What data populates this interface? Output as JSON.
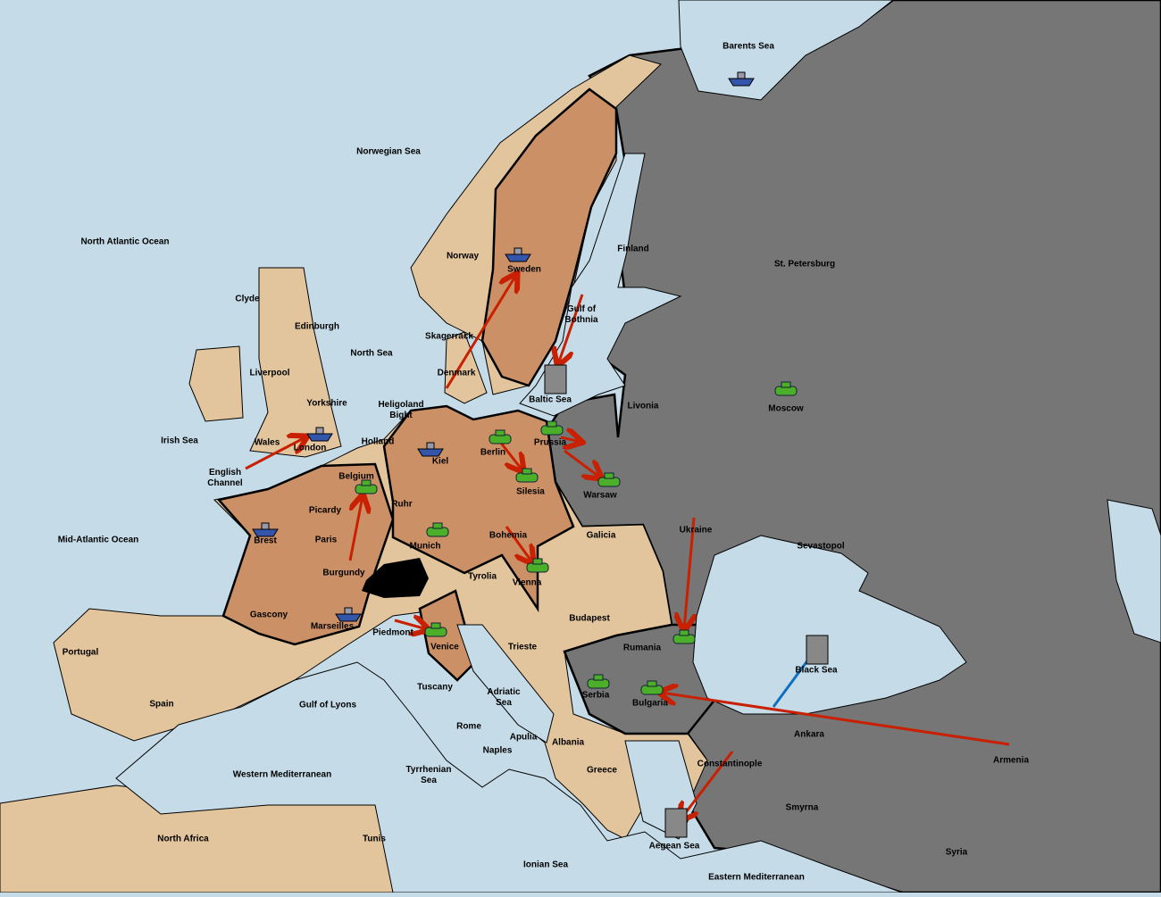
{
  "regions": [
    "Barents Sea",
    "Norwegian Sea",
    "North Atlantic Ocean",
    "Finland",
    "St. Petersburg",
    "Norway",
    "Sweden",
    "Clyde",
    "Edinburgh",
    "Gulf of Bothnia",
    "Skagerrack",
    "North Sea",
    "Liverpool",
    "Denmark",
    "Baltic Sea",
    "Yorkshire",
    "Heligoland Bight",
    "Livonia",
    "Moscow",
    "Irish Sea",
    "Wales",
    "Holland",
    "London",
    "Prussia",
    "Kiel",
    "Berlin",
    "English Channel",
    "Belgium",
    "Silesia",
    "Warsaw",
    "Ruhr",
    "Picardy",
    "Ukraine",
    "Bohemia",
    "Galicia",
    "Mid-Atlantic Ocean",
    "Brest",
    "Paris",
    "Munich",
    "Sevastopol",
    "Burgundy",
    "Tyrolia",
    "Vienna",
    "Gascony",
    "Budapest",
    "Marseilles",
    "Piedmont",
    "Venice",
    "Trieste",
    "Rumania",
    "Portugal",
    "Black Sea",
    "Tuscany",
    "Adriatic Sea",
    "Serbia",
    "Bulgaria",
    "Spain",
    "Gulf of Lyons",
    "Rome",
    "Apulia",
    "Ankara",
    "Albania",
    "Naples",
    "Armenia",
    "Constantinople",
    "Western Mediterranean",
    "Tyrrhenian Sea",
    "Greece",
    "Smyrna",
    "North Africa",
    "Tunis",
    "Aegean Sea",
    "Ionian Sea",
    "Syria",
    "Eastern Mediterranean"
  ]
}
